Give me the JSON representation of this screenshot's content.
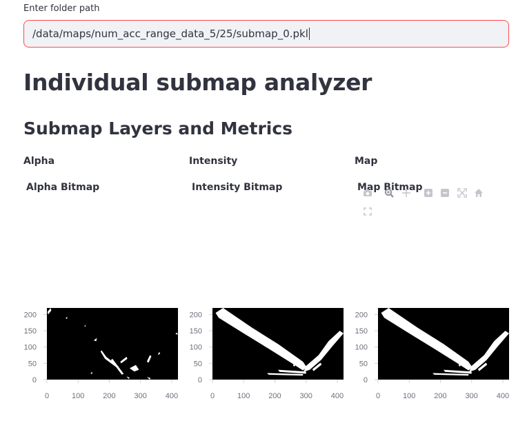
{
  "folder": {
    "label": "Enter folder path",
    "value": "/data/maps/num_acc_range_data_5/25/submap_0.pkl"
  },
  "page_title": "Individual submap analyzer",
  "section_title": "Submap Layers and Metrics",
  "columns": [
    {
      "header": "Alpha",
      "plot_title": "Alpha Bitmap"
    },
    {
      "header": "Intensity",
      "plot_title": "Intensity Bitmap"
    },
    {
      "header": "Map",
      "plot_title": "Map Bitmap"
    }
  ],
  "modebar": {
    "icons": [
      "camera-icon",
      "zoom-icon",
      "pan-icon",
      "zoom-in-icon",
      "zoom-out-icon",
      "autoscale-icon",
      "home-icon",
      "fullscreen-icon"
    ]
  },
  "chart_data": [
    {
      "type": "heatmap",
      "title": "Alpha Bitmap",
      "xlim": [
        0,
        420
      ],
      "ylim": [
        0,
        220
      ],
      "x_ticks": [
        0,
        100,
        200,
        300,
        400
      ],
      "y_ticks": [
        0,
        50,
        100,
        150,
        200
      ],
      "colors": {
        "background": "#000000",
        "foreground": "#ffffff"
      },
      "grid": false
    },
    {
      "type": "heatmap",
      "title": "Intensity Bitmap",
      "xlim": [
        0,
        420
      ],
      "ylim": [
        0,
        220
      ],
      "x_ticks": [
        0,
        100,
        200,
        300,
        400
      ],
      "y_ticks": [
        0,
        50,
        100,
        150,
        200
      ],
      "colors": {
        "background": "#000000",
        "foreground": "#ffffff"
      },
      "grid": false
    },
    {
      "type": "heatmap",
      "title": "Map Bitmap",
      "xlim": [
        0,
        420
      ],
      "ylim": [
        0,
        220
      ],
      "x_ticks": [
        0,
        100,
        200,
        300,
        400
      ],
      "y_ticks": [
        0,
        50,
        100,
        150,
        200
      ],
      "colors": {
        "background": "#000000",
        "foreground": "#ffffff"
      },
      "grid": false
    }
  ]
}
